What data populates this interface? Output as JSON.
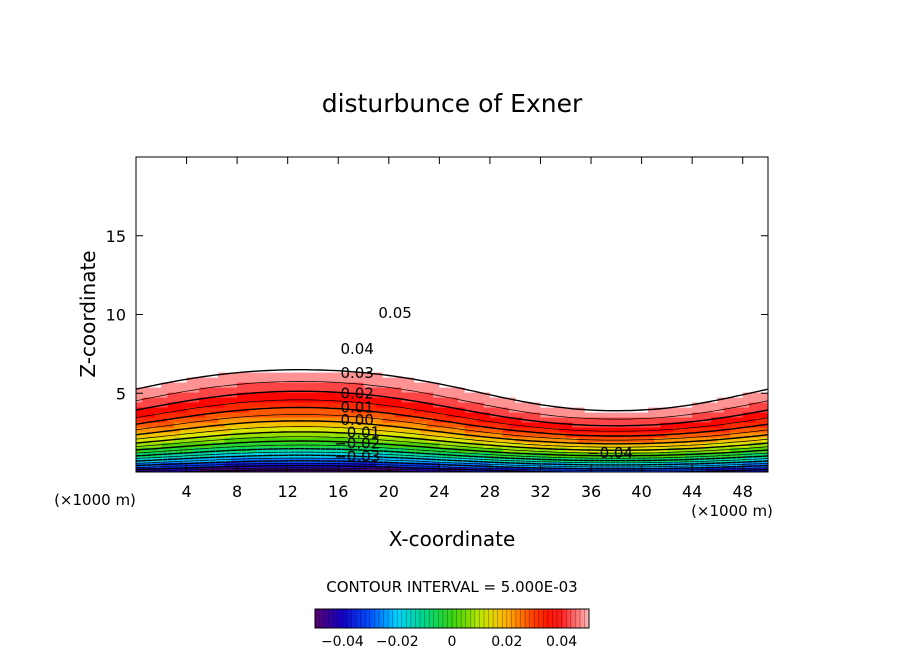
{
  "chart_data": {
    "type": "heatmap",
    "title": "disturbunce of Exner",
    "xlabel": "X-coordinate",
    "ylabel": "Z-coordinate",
    "x_unit": "(×1000 m)",
    "y_unit": "(×1000 m)",
    "xlim": [
      0,
      50
    ],
    "ylim": [
      0,
      20
    ],
    "x_ticks": [
      4,
      8,
      12,
      16,
      20,
      24,
      28,
      32,
      36,
      40,
      44,
      48
    ],
    "y_ticks": [
      5,
      10,
      15
    ],
    "contour_interval_text": "CONTOUR INTERVAL = 5.000E-03",
    "contour_interval": 0.005,
    "color_range": [
      -0.05,
      0.05
    ],
    "colorbar_ticks": [
      "−0.04",
      "−0.02",
      "0",
      "0.02",
      "0.04"
    ],
    "colorbar_tick_values": [
      -0.04,
      -0.02,
      0,
      0.02,
      0.04
    ],
    "contour_labels": [
      {
        "text": "0.05",
        "x": 20.5,
        "z": 10.1
      },
      {
        "text": "0.04",
        "x": 17.5,
        "z": 7.8
      },
      {
        "text": "0.03",
        "x": 17.5,
        "z": 6.3
      },
      {
        "text": "0.02",
        "x": 17.5,
        "z": 5.0
      },
      {
        "text": "0.01",
        "x": 17.5,
        "z": 4.1
      },
      {
        "text": "0.00",
        "x": 17.5,
        "z": 3.3
      },
      {
        "text": "−0.01",
        "x": 17.5,
        "z": 2.5
      },
      {
        "text": "−0.02",
        "x": 17.5,
        "z": 1.8
      },
      {
        "text": "−0.03",
        "x": 17.5,
        "z": 1.0
      },
      {
        "text": "−0.04",
        "x": 37.5,
        "z": 1.2
      }
    ],
    "field_model": "value ≈ 0.038 + 0.04·(1 − e^(−z/8)) − 0.085·e^(−z/2.2) + 0.012·cos(2π(x−38)/50)·e^(−((z−2.5)/4)²) + 0.013·cos(2π(x−38)/50)·(z/20)²; above 0.05 drawn white",
    "grid": false
  }
}
